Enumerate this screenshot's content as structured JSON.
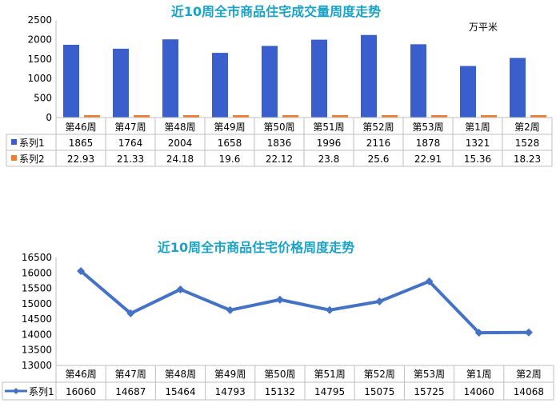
{
  "chart_data": [
    {
      "type": "bar",
      "title": "近10周全市商品住宅成交量周度走势",
      "unit": "万平米",
      "categories": [
        "第46周",
        "第47周",
        "第48周",
        "第49周",
        "第50周",
        "第51周",
        "第52周",
        "第53周",
        "第1周",
        "第2周"
      ],
      "ylim": [
        0,
        2500
      ],
      "yticks": [
        0,
        500,
        1000,
        1500,
        2000,
        2500
      ],
      "series": [
        {
          "name": "系列1",
          "color": "#3A5FCD",
          "values": [
            1865,
            1764,
            2004,
            1658,
            1836,
            1996,
            2116,
            1878,
            1321,
            1528
          ],
          "labels": [
            "1865",
            "1764",
            "2004",
            "1658",
            "1836",
            "1996",
            "2116",
            "1878",
            "1321",
            "1528"
          ]
        },
        {
          "name": "系列2",
          "color": "#ED7D31",
          "values": [
            22.93,
            21.33,
            24.18,
            19.6,
            22.12,
            23.8,
            25.6,
            22.91,
            15.36,
            18.23
          ],
          "labels": [
            "22.93",
            "21.33",
            "24.18",
            "19.6",
            "22.12",
            "23.8",
            "25.6",
            "22.91",
            "15.36",
            "18.23"
          ]
        }
      ],
      "grid": false
    },
    {
      "type": "line",
      "title": "近10周全市商品住宅价格周度走势",
      "categories": [
        "第46周",
        "第47周",
        "第48周",
        "第49周",
        "第50周",
        "第51周",
        "第52周",
        "第53周",
        "第1周",
        "第2周"
      ],
      "ylim": [
        13000,
        16500
      ],
      "yticks": [
        13000,
        13500,
        14000,
        14500,
        15000,
        15500,
        16000,
        16500
      ],
      "series": [
        {
          "name": "系列1",
          "color": "#4472C4",
          "values": [
            16060,
            14687,
            15464,
            14793,
            15132,
            14795,
            15075,
            15725,
            14060,
            14068
          ],
          "labels": [
            "16060",
            "14687",
            "15464",
            "14793",
            "15132",
            "14795",
            "15075",
            "15725",
            "14060",
            "14068"
          ]
        }
      ],
      "grid": false
    }
  ]
}
